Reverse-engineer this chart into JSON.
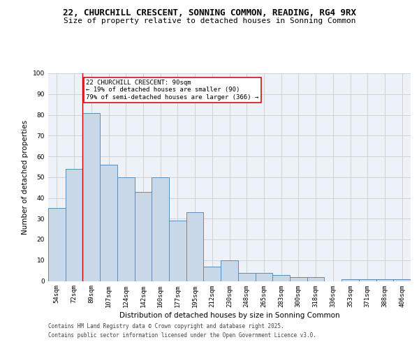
{
  "title": "22, CHURCHILL CRESCENT, SONNING COMMON, READING, RG4 9RX",
  "subtitle": "Size of property relative to detached houses in Sonning Common",
  "xlabel": "Distribution of detached houses by size in Sonning Common",
  "ylabel": "Number of detached properties",
  "categories": [
    "54sqm",
    "72sqm",
    "89sqm",
    "107sqm",
    "124sqm",
    "142sqm",
    "160sqm",
    "177sqm",
    "195sqm",
    "212sqm",
    "230sqm",
    "248sqm",
    "265sqm",
    "283sqm",
    "300sqm",
    "318sqm",
    "336sqm",
    "353sqm",
    "371sqm",
    "388sqm",
    "406sqm"
  ],
  "values": [
    35,
    54,
    81,
    56,
    50,
    43,
    50,
    29,
    33,
    7,
    10,
    4,
    4,
    3,
    2,
    2,
    0,
    1,
    1,
    1,
    1
  ],
  "bar_color": "#c8d8e8",
  "bar_edge_color": "#5b8db8",
  "grid_color": "#cccccc",
  "background_color": "#ffffff",
  "ax_background_color": "#edf2f8",
  "annotation_line1": "22 CHURCHILL CRESCENT: 90sqm",
  "annotation_line2": "← 19% of detached houses are smaller (90)",
  "annotation_line3": "79% of semi-detached houses are larger (366) →",
  "annotation_box_color": "#ffffff",
  "annotation_box_edge_color": "#cc0000",
  "vline_color": "#cc0000",
  "vline_x_index": 2,
  "ylim": [
    0,
    100
  ],
  "yticks": [
    0,
    10,
    20,
    30,
    40,
    50,
    60,
    70,
    80,
    90,
    100
  ],
  "footer_line1": "Contains HM Land Registry data © Crown copyright and database right 2025.",
  "footer_line2": "Contains public sector information licensed under the Open Government Licence v3.0.",
  "title_fontsize": 9,
  "subtitle_fontsize": 8,
  "axis_label_fontsize": 7.5,
  "tick_fontsize": 6.5,
  "annotation_fontsize": 6.5,
  "footer_fontsize": 5.5,
  "ylabel_fontsize": 7.5
}
